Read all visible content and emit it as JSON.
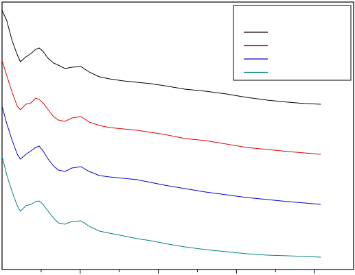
{
  "chart_data": {
    "type": "line",
    "x": [
      0,
      0.12,
      0.26,
      0.39,
      0.47,
      0.61,
      0.74,
      0.86,
      0.95,
      1.05,
      1.18,
      1.32,
      1.44,
      1.61,
      1.79,
      2.02,
      2.23,
      2.49,
      2.75,
      3.11,
      3.46,
      3.81,
      4.16,
      4.68,
      5.21,
      5.74,
      6.26,
      6.79,
      7.32,
      7.75,
      8.16
    ],
    "series": [
      {
        "color": "#000000",
        "values": [
          378,
          363,
          333,
          313,
          303,
          310,
          315,
          321,
          323,
          318,
          308,
          301,
          298,
          293,
          295,
          296,
          288,
          281,
          278,
          275,
          273,
          271,
          268,
          263,
          260,
          256,
          251,
          247,
          244,
          242,
          241
        ]
      },
      {
        "color": "#e00000",
        "values": [
          305,
          283,
          258,
          238,
          233,
          241,
          243,
          250,
          248,
          243,
          233,
          223,
          218,
          216,
          221,
          223,
          215,
          210,
          207,
          205,
          203,
          200,
          197,
          191,
          188,
          183,
          178,
          175,
          172,
          170,
          168
        ]
      },
      {
        "color": "#0000cc",
        "values": [
          238,
          213,
          188,
          168,
          161,
          168,
          173,
          178,
          180,
          173,
          161,
          151,
          145,
          143,
          148,
          150,
          143,
          137,
          135,
          133,
          131,
          127,
          123,
          118,
          113,
          109,
          105,
          102,
          99,
          97,
          95
        ]
      },
      {
        "color": "#008080",
        "values": [
          165,
          138,
          113,
          93,
          85,
          93,
          95,
          99,
          100,
          95,
          85,
          75,
          68,
          66,
          70,
          71,
          63,
          56,
          53,
          49,
          45,
          42,
          38,
          33,
          29,
          26,
          23,
          21,
          20,
          19,
          18
        ]
      }
    ],
    "xlim": [
      0,
      9
    ],
    "xticks": [
      1,
      2,
      3,
      4,
      5,
      6,
      7,
      8
    ],
    "ylim": [
      0,
      390
    ],
    "legend": "upper right"
  }
}
